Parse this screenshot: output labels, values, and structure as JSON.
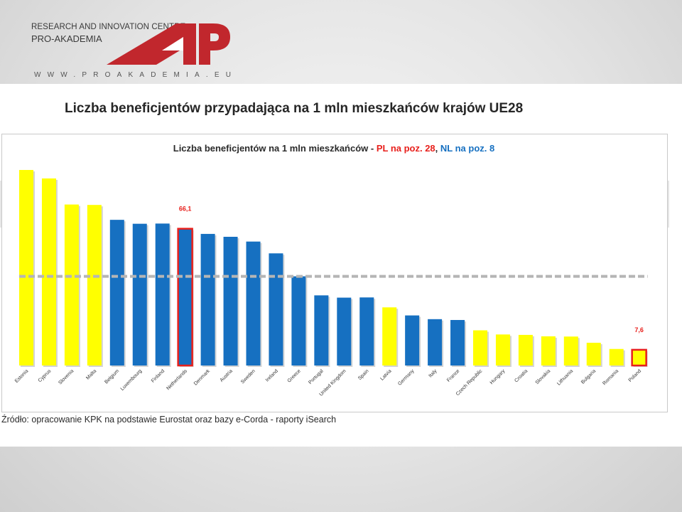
{
  "header": {
    "org_line1": "RESEARCH AND INNOVATION CENTRE",
    "org_line2": "PRO-AKADEMIA",
    "website": "WWW.PROAKADEMIA.EU",
    "logo_text": "AP"
  },
  "slide": {
    "title": "Liczba beneficjentów przypadająca na 1 mln mieszkańców krajów UE28",
    "source": "Źródło: opracowanie KPK na podstawie Eurostat oraz bazy e-Corda  - raporty iSearch"
  },
  "chart_data": {
    "type": "bar",
    "title_main": "Liczba beneficjentów na 1 mln mieszkańców - ",
    "title_pl": "PL na poz. 28",
    "title_sep": ", ",
    "title_nl": "NL na poz. 8",
    "categories": [
      "Estonia",
      "Cyprus",
      "Slovenia",
      "Malta",
      "Belgium",
      "Luxembourg",
      "Finland",
      "Netherlands",
      "Denmark",
      "Austria",
      "Sweden",
      "Ireland",
      "Greece",
      "Portugal",
      "United Kingdom",
      "Spain",
      "Latvia",
      "Germany",
      "Italy",
      "France",
      "Czech Republic",
      "Hungary",
      "Croatia",
      "Slovakia",
      "Lithuania",
      "Bulgaria",
      "Romania",
      "Poland"
    ],
    "values": [
      94.5,
      90.4,
      77.8,
      77.6,
      70.4,
      68.5,
      68.6,
      66.1,
      63.6,
      62.2,
      59.9,
      54.2,
      43.1,
      33.9,
      32.8,
      32.9,
      28.1,
      24.2,
      22.4,
      22.0,
      17.0,
      15.0,
      14.8,
      14.1,
      14.0,
      11.0,
      8.0,
      7.6
    ],
    "colors": [
      "yellow",
      "yellow",
      "yellow",
      "yellow",
      "blue",
      "blue",
      "blue",
      "blue",
      "blue",
      "blue",
      "blue",
      "blue",
      "blue",
      "blue",
      "blue",
      "blue",
      "yellow",
      "blue",
      "blue",
      "blue",
      "yellow",
      "yellow",
      "yellow",
      "yellow",
      "yellow",
      "yellow",
      "yellow",
      "yellow"
    ],
    "highlighted": [
      "Netherlands",
      "Poland"
    ],
    "data_labels": {
      "Netherlands": "66,1",
      "Poland": "7,6"
    },
    "average_line": 43.1,
    "ylim": [
      0,
      100
    ],
    "legend": "none",
    "grid": false,
    "palette": {
      "yellow": "#ffff00",
      "blue": "#1670c1",
      "highlight": "#e8201c",
      "average": "#b5b5b5"
    }
  }
}
